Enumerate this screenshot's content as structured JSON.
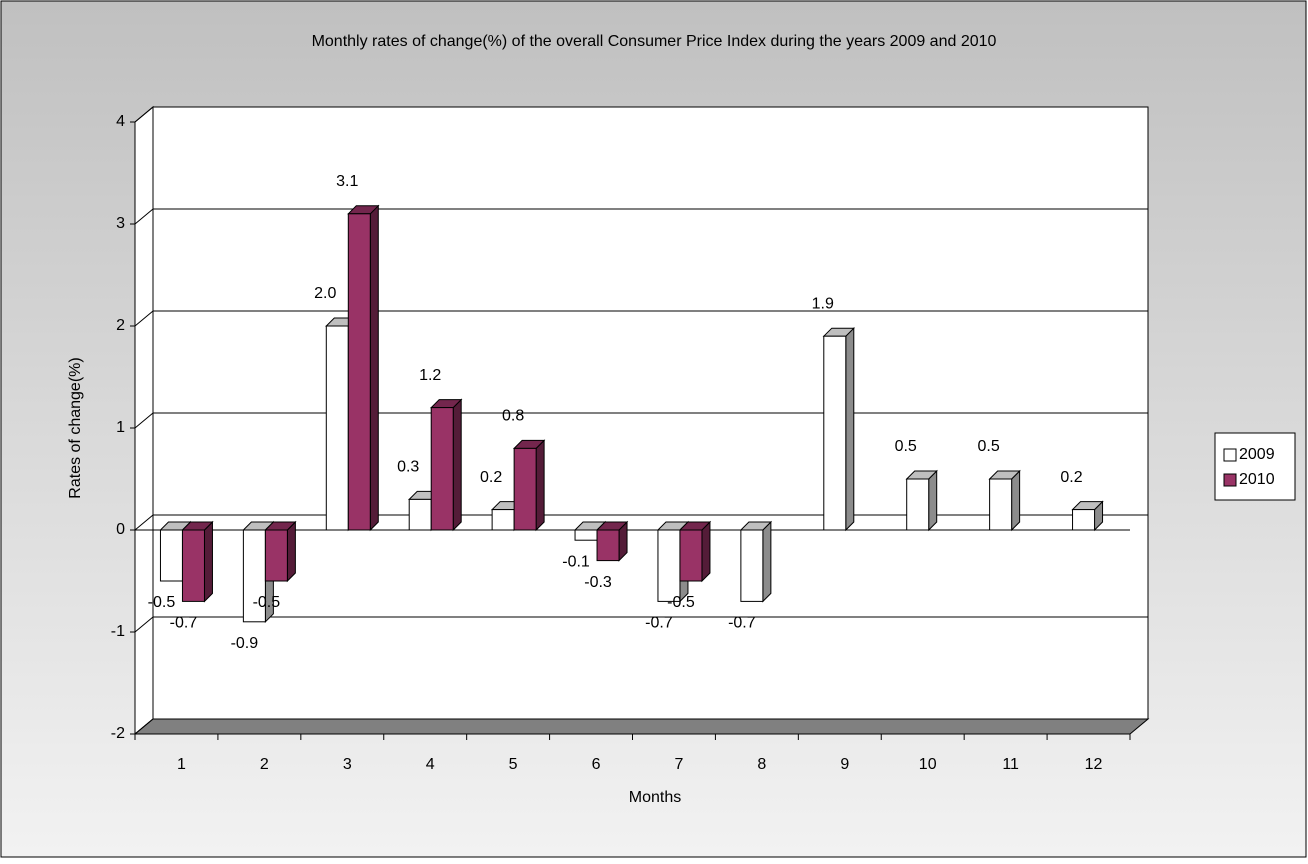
{
  "chart_data": {
    "type": "bar3d",
    "title": "Monthly rates of change(%) of the overall Consumer Price Index during the years 2009 and 2010",
    "x_label": "Months",
    "y_label": "Rates of change(%)",
    "categories": [
      "1",
      "2",
      "3",
      "4",
      "5",
      "6",
      "7",
      "8",
      "9",
      "10",
      "11",
      "12"
    ],
    "series": [
      {
        "name": "2009",
        "color": "#ffffff",
        "values": [
          -0.5,
          -0.9,
          2.0,
          0.3,
          0.2,
          -0.1,
          -0.7,
          -0.7,
          1.9,
          0.5,
          0.5,
          0.2
        ],
        "value_labels": [
          "-0.5",
          "-0.9",
          "2.0",
          "0.3",
          "0.2",
          "-0.1",
          "-0.7",
          "-0.7",
          "1.9",
          "0.5",
          "0.5",
          "0.2"
        ]
      },
      {
        "name": "2010",
        "color": "#993366",
        "values": [
          -0.7,
          -0.5,
          3.1,
          1.2,
          0.8,
          -0.3,
          -0.5,
          null,
          null,
          null,
          null,
          null
        ],
        "value_labels": [
          "-0.7",
          "-0.5",
          "3.1",
          "1.2",
          "0.8",
          "-0.3",
          "-0.5",
          null,
          null,
          null,
          null,
          null
        ]
      }
    ],
    "ylim": [
      -2,
      4
    ],
    "yticks": [
      -2,
      -1,
      0,
      1,
      2,
      3,
      4
    ],
    "grid": true,
    "legend": "right"
  }
}
